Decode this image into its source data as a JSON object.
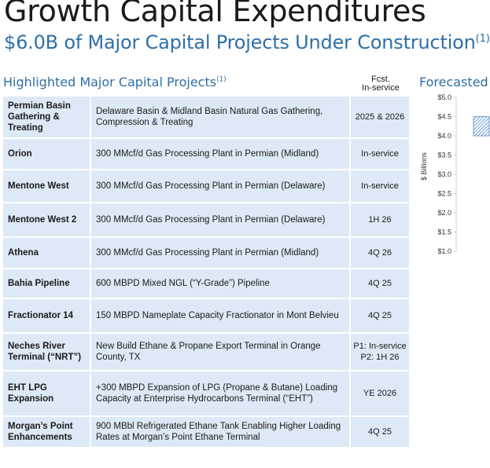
{
  "header": {
    "title": "Growth Capital Expenditures",
    "subtitle": "$6.0B of Major Capital Projects Under Construction",
    "subtitle_note": "(1)"
  },
  "projects_section": {
    "title": "Highlighted Major Capital Projects",
    "title_note": "(1)",
    "col_fcst_line1": "Fcst.",
    "col_fcst_line2": "In-service"
  },
  "projects": [
    {
      "name": "Permian Basin Gathering & Treating",
      "desc": "Delaware Basin & Midland Basin Natural Gas Gathering, Compression & Treating",
      "date": "2025 & 2026"
    },
    {
      "name": "Orion",
      "desc": "300 MMcf/d Gas Processing Plant in Permian (Midland)",
      "date": "In-service"
    },
    {
      "name": "Mentone West",
      "desc": "300 MMcf/d Gas Processing Plant in Permian (Delaware)",
      "date": "In-service"
    },
    {
      "name": "Mentone West 2",
      "desc": "300 MMcf/d Gas Processing Plant in Permian (Delaware)",
      "date": "1H 26"
    },
    {
      "name": "Athena",
      "desc": "300 MMcf/d Gas Processing Plant in Permian (Midland)",
      "date": "4Q 26"
    },
    {
      "name": "Bahia Pipeline",
      "desc": "600 MBPD Mixed NGL (“Y-Grade”) Pipeline",
      "date": "4Q 25"
    },
    {
      "name": "Fractionator 14",
      "desc": "150 MBPD Nameplate Capacity Fractionator in Mont Belvieu",
      "date": "4Q 25"
    },
    {
      "name": "Neches River Terminal (“NRT”)",
      "desc": "New Build Ethane & Propane Export Terminal in Orange County, TX",
      "date": "P1: In-service P2: 1H 26"
    },
    {
      "name": "EHT LPG Expansion",
      "desc": "+300 MBPD Expansion of LPG (Propane & Butane) Loading Capacity at Enterprise Hydrocarbons Terminal (“EHT”)",
      "date": "YE 2026"
    },
    {
      "name": "Morgan’s Point Enhancements",
      "desc": "900 MBbl Refrigerated Ethane Tank Enabling Higher Loading Rates at Morgan’s Point Ethane Terminal",
      "date": "4Q 25"
    }
  ],
  "forecast_section": {
    "title": "Forecasted"
  },
  "chart_data": {
    "type": "bar",
    "ylabel": "$ Billions",
    "ylim": [
      1.0,
      5.0
    ],
    "yticks": [
      "$1.0",
      "$1.5",
      "$2.0",
      "$2.5",
      "$3.0",
      "$3.5",
      "$4.0",
      "$4.5",
      "$5.0"
    ],
    "ytick_values": [
      1.0,
      1.5,
      2.0,
      2.5,
      3.0,
      3.5,
      4.0,
      4.5,
      5.0
    ],
    "bar_range_low": 4.0,
    "bar_range_high": 4.5,
    "bar_color": "#6f9fd0",
    "bar_pattern": "hatched"
  }
}
